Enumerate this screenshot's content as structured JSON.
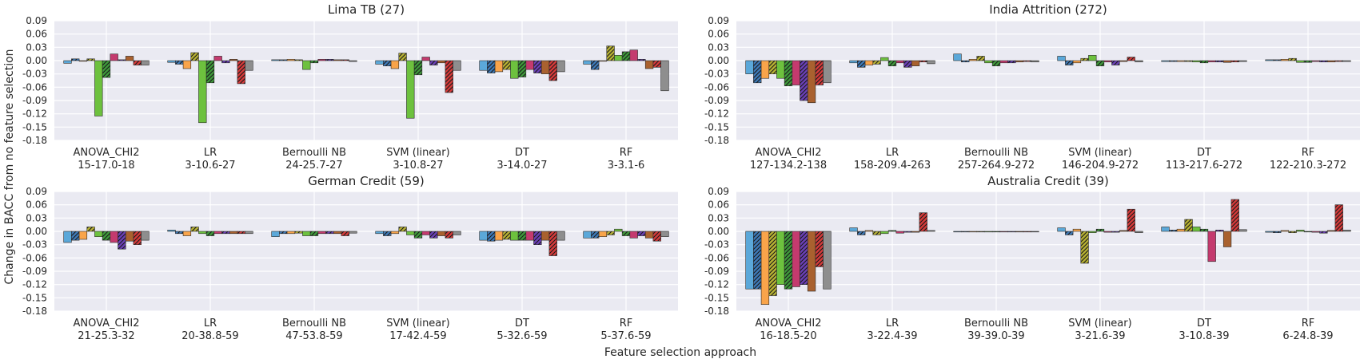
{
  "figure": {
    "ylabel": "Change in BACC from no feature selection",
    "xlabel": "Feature selection approach"
  },
  "colors": {
    "panel_bg": "#EAEAF2",
    "grid": "#FFFFFF",
    "bars": [
      "#5BA8D9",
      "#3E7AB8",
      "#F9A44A",
      "#B8B233",
      "#6DC13E",
      "#3E9A3A",
      "#C43A6E",
      "#6B3FB7",
      "#A9612F",
      "#D63A3A",
      "#8E8E8E"
    ],
    "hatched": [
      false,
      true,
      false,
      true,
      false,
      true,
      false,
      true,
      false,
      true,
      false
    ]
  },
  "chart_data": [
    {
      "type": "bar",
      "title": "Lima TB (27)",
      "ylim": [
        -0.18,
        0.09
      ],
      "yticks": [
        "0.09",
        "0.06",
        "0.03",
        "0.00",
        "-0.03",
        "-0.06",
        "-0.09",
        "-0.12",
        "-0.15",
        "-0.18"
      ],
      "categories": [
        {
          "name": "ANOVA_CHI2",
          "sub": "15-17.0-18"
        },
        {
          "name": "LR",
          "sub": "3-10.6-27"
        },
        {
          "name": "Bernoulli NB",
          "sub": "24-25.7-27"
        },
        {
          "name": "SVM (linear)",
          "sub": "3-10.8-27"
        },
        {
          "name": "DT",
          "sub": "3-14.0-27"
        },
        {
          "name": "RF",
          "sub": "3-3.1-6"
        }
      ],
      "values": [
        [
          -0.006,
          0.004,
          0.0,
          0.004,
          -0.125,
          -0.038,
          0.015,
          0.002,
          0.01,
          -0.01,
          -0.01
        ],
        [
          -0.004,
          -0.008,
          -0.018,
          0.018,
          -0.14,
          -0.05,
          0.01,
          -0.005,
          0.003,
          -0.052,
          -0.022
        ],
        [
          0.002,
          0.002,
          0.003,
          0.002,
          -0.02,
          -0.005,
          0.003,
          0.003,
          0.002,
          0.002,
          -0.002
        ],
        [
          -0.008,
          -0.012,
          -0.018,
          0.017,
          -0.13,
          -0.032,
          0.008,
          -0.01,
          -0.005,
          -0.072,
          -0.022
        ],
        [
          -0.022,
          -0.028,
          -0.025,
          -0.02,
          -0.04,
          -0.037,
          -0.02,
          -0.028,
          -0.03,
          -0.045,
          -0.025
        ],
        [
          -0.008,
          -0.02,
          0.0,
          0.033,
          0.012,
          0.02,
          0.024,
          0.003,
          -0.018,
          -0.015,
          -0.068
        ]
      ]
    },
    {
      "type": "bar",
      "title": "India Attrition (272)",
      "ylim": [
        -0.18,
        0.09
      ],
      "yticks": [
        "0.09",
        "0.06",
        "0.03",
        "0.00",
        "-0.03",
        "-0.06",
        "-0.09",
        "-0.12",
        "-0.15",
        "-0.18"
      ],
      "categories": [
        {
          "name": "ANOVA_CHI2",
          "sub": "127-134.2-138"
        },
        {
          "name": "LR",
          "sub": "158-209.4-263"
        },
        {
          "name": "Bernoulli NB",
          "sub": "257-264.9-272"
        },
        {
          "name": "SVM (linear)",
          "sub": "146-204.9-272"
        },
        {
          "name": "DT",
          "sub": "113-217.6-272"
        },
        {
          "name": "RF",
          "sub": "122-210.3-272"
        }
      ],
      "values": [
        [
          -0.03,
          -0.05,
          -0.04,
          -0.03,
          -0.04,
          -0.057,
          -0.055,
          -0.09,
          -0.095,
          -0.055,
          -0.05
        ],
        [
          -0.005,
          -0.015,
          -0.01,
          -0.008,
          0.007,
          -0.012,
          -0.005,
          -0.015,
          -0.012,
          -0.003,
          -0.007
        ],
        [
          0.015,
          -0.003,
          0.003,
          0.01,
          -0.005,
          -0.012,
          -0.005,
          -0.005,
          -0.003,
          -0.002,
          -0.003
        ],
        [
          0.01,
          -0.01,
          -0.005,
          0.005,
          0.012,
          -0.012,
          -0.003,
          -0.01,
          -0.002,
          0.008,
          -0.003
        ],
        [
          -0.002,
          -0.002,
          -0.002,
          -0.002,
          -0.003,
          -0.005,
          -0.003,
          -0.003,
          -0.004,
          -0.003,
          -0.002
        ],
        [
          0.002,
          0.002,
          0.003,
          0.005,
          -0.004,
          -0.004,
          -0.002,
          -0.003,
          -0.003,
          -0.002,
          -0.002
        ]
      ]
    },
    {
      "type": "bar",
      "title": "German Credit (59)",
      "ylim": [
        -0.18,
        0.09
      ],
      "yticks": [
        "0.09",
        "0.06",
        "0.03",
        "0.00",
        "-0.03",
        "-0.06",
        "-0.09",
        "-0.12",
        "-0.15",
        "-0.18"
      ],
      "categories": [
        {
          "name": "ANOVA_CHI2",
          "sub": "21-25.3-32"
        },
        {
          "name": "LR",
          "sub": "20-38.8-59"
        },
        {
          "name": "Bernoulli NB",
          "sub": "47-53.8-59"
        },
        {
          "name": "SVM (linear)",
          "sub": "17-42.4-59"
        },
        {
          "name": "DT",
          "sub": "5-32.6-59"
        },
        {
          "name": "RF",
          "sub": "5-37.6-59"
        }
      ],
      "values": [
        [
          -0.025,
          -0.02,
          -0.018,
          0.01,
          -0.012,
          -0.02,
          -0.025,
          -0.04,
          -0.022,
          -0.03,
          -0.02
        ],
        [
          0.003,
          -0.005,
          -0.01,
          0.01,
          -0.005,
          -0.01,
          -0.005,
          -0.005,
          -0.005,
          -0.005,
          -0.005
        ],
        [
          -0.012,
          -0.005,
          -0.005,
          -0.004,
          -0.01,
          -0.01,
          -0.005,
          -0.005,
          -0.005,
          -0.01,
          -0.004
        ],
        [
          -0.005,
          -0.01,
          -0.005,
          0.01,
          -0.008,
          -0.015,
          -0.008,
          -0.015,
          -0.01,
          -0.015,
          -0.008
        ],
        [
          -0.02,
          -0.022,
          -0.02,
          -0.018,
          -0.02,
          -0.02,
          -0.02,
          -0.03,
          -0.02,
          -0.055,
          -0.02
        ],
        [
          -0.015,
          -0.015,
          -0.012,
          -0.008,
          0.005,
          -0.01,
          -0.015,
          -0.01,
          -0.015,
          -0.022,
          -0.012
        ]
      ]
    },
    {
      "type": "bar",
      "title": "Australia Credit (39)",
      "ylim": [
        -0.18,
        0.09
      ],
      "yticks": [
        "0.09",
        "0.06",
        "0.03",
        "0.00",
        "-0.03",
        "-0.06",
        "-0.09",
        "-0.12",
        "-0.15",
        "-0.18"
      ],
      "categories": [
        {
          "name": "ANOVA_CHI2",
          "sub": "16-18.5-20"
        },
        {
          "name": "LR",
          "sub": "3-22.4-39"
        },
        {
          "name": "Bernoulli NB",
          "sub": "39-39.0-39"
        },
        {
          "name": "SVM (linear)",
          "sub": "3-21.6-39"
        },
        {
          "name": "DT",
          "sub": "3-10.8-39"
        },
        {
          "name": "RF",
          "sub": "6-24.8-39"
        }
      ],
      "values": [
        [
          -0.13,
          -0.13,
          -0.165,
          -0.145,
          -0.12,
          -0.13,
          -0.125,
          -0.12,
          -0.135,
          -0.08,
          -0.13
        ],
        [
          0.008,
          -0.008,
          0.002,
          -0.008,
          -0.005,
          0.002,
          -0.004,
          -0.002,
          -0.002,
          0.042,
          0.002
        ],
        [
          0.0,
          0.0,
          0.0,
          0.0,
          0.0,
          0.0,
          0.0,
          0.0,
          0.0,
          0.0,
          0.0
        ],
        [
          0.008,
          -0.008,
          0.005,
          -0.072,
          -0.003,
          0.005,
          -0.002,
          -0.002,
          0.002,
          0.05,
          -0.003
        ],
        [
          0.01,
          0.003,
          0.005,
          0.027,
          0.01,
          0.005,
          -0.068,
          0.003,
          -0.035,
          0.072,
          0.004
        ],
        [
          -0.002,
          -0.003,
          0.002,
          -0.003,
          0.003,
          0.0,
          -0.002,
          -0.004,
          0.002,
          0.06,
          0.003
        ]
      ]
    }
  ]
}
